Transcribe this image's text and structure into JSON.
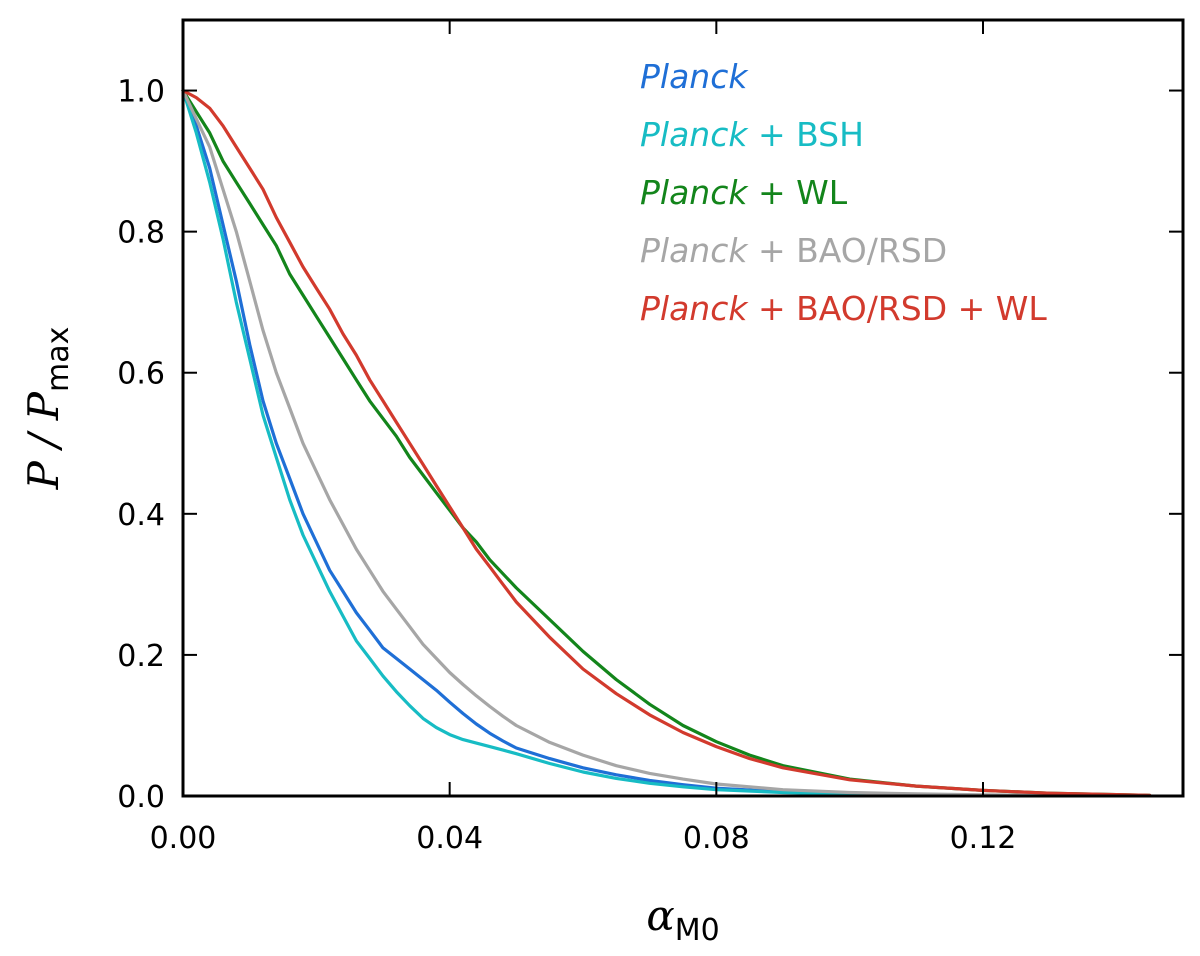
{
  "chart_data": {
    "type": "line",
    "title": "",
    "xlabel": {
      "main": "α",
      "sub": "M0"
    },
    "ylabel": {
      "main": "P / P",
      "sub": "max"
    },
    "xlim": [
      0.0,
      0.15
    ],
    "ylim": [
      0.0,
      1.1
    ],
    "xticks": [
      0.0,
      0.04,
      0.08,
      0.12
    ],
    "xtick_labels": [
      "0.00",
      "0.04",
      "0.08",
      "0.12"
    ],
    "yticks": [
      0.0,
      0.2,
      0.4,
      0.6,
      0.8,
      1.0
    ],
    "ytick_labels": [
      "0.0",
      "0.2",
      "0.4",
      "0.6",
      "0.8",
      "1.0"
    ],
    "grid": false,
    "legend_position": "top-right",
    "series": [
      {
        "name": "Planck",
        "legend_italic": "Planck",
        "legend_rest": "",
        "color": "#1f6fd6",
        "x": [
          0,
          0.002,
          0.004,
          0.006,
          0.008,
          0.01,
          0.012,
          0.014,
          0.016,
          0.018,
          0.02,
          0.022,
          0.024,
          0.026,
          0.028,
          0.03,
          0.032,
          0.034,
          0.036,
          0.038,
          0.04,
          0.042,
          0.044,
          0.046,
          0.048,
          0.05,
          0.055,
          0.06,
          0.065,
          0.07,
          0.075,
          0.08,
          0.09,
          0.1,
          0.11,
          0.12,
          0.13,
          0.14,
          0.145
        ],
        "y": [
          1.0,
          0.95,
          0.89,
          0.81,
          0.73,
          0.64,
          0.56,
          0.5,
          0.45,
          0.4,
          0.36,
          0.32,
          0.29,
          0.26,
          0.235,
          0.21,
          0.195,
          0.18,
          0.165,
          0.15,
          0.133,
          0.117,
          0.102,
          0.089,
          0.078,
          0.068,
          0.053,
          0.04,
          0.03,
          0.022,
          0.016,
          0.011,
          0.006,
          0.003,
          0.002,
          0.001,
          0.0005,
          0.0002,
          0.0001
        ]
      },
      {
        "name": "Planck + BSH",
        "legend_italic": "Planck",
        "legend_rest": " + BSH",
        "color": "#17bcc4",
        "x": [
          0,
          0.002,
          0.004,
          0.006,
          0.008,
          0.01,
          0.012,
          0.014,
          0.016,
          0.018,
          0.02,
          0.022,
          0.024,
          0.026,
          0.028,
          0.03,
          0.032,
          0.034,
          0.036,
          0.038,
          0.04,
          0.042,
          0.044,
          0.046,
          0.048,
          0.05,
          0.055,
          0.06,
          0.065,
          0.07,
          0.075,
          0.08,
          0.09,
          0.1,
          0.11,
          0.12,
          0.13,
          0.14,
          0.145
        ],
        "y": [
          1.0,
          0.94,
          0.87,
          0.79,
          0.7,
          0.62,
          0.54,
          0.48,
          0.42,
          0.37,
          0.33,
          0.29,
          0.255,
          0.22,
          0.195,
          0.17,
          0.148,
          0.128,
          0.11,
          0.097,
          0.087,
          0.08,
          0.075,
          0.07,
          0.065,
          0.06,
          0.046,
          0.034,
          0.025,
          0.018,
          0.013,
          0.009,
          0.005,
          0.003,
          0.0015,
          0.0008,
          0.0004,
          0.0002,
          0.0001
        ]
      },
      {
        "name": "Planck + WL",
        "legend_italic": "Planck",
        "legend_rest": " + WL",
        "color": "#13851b",
        "x": [
          0,
          0.002,
          0.004,
          0.006,
          0.008,
          0.01,
          0.012,
          0.014,
          0.016,
          0.018,
          0.02,
          0.022,
          0.024,
          0.026,
          0.028,
          0.03,
          0.032,
          0.034,
          0.036,
          0.038,
          0.04,
          0.042,
          0.044,
          0.046,
          0.048,
          0.05,
          0.055,
          0.06,
          0.065,
          0.07,
          0.075,
          0.08,
          0.085,
          0.09,
          0.1,
          0.11,
          0.12,
          0.13,
          0.14,
          0.145
        ],
        "y": [
          1.0,
          0.97,
          0.94,
          0.9,
          0.87,
          0.84,
          0.81,
          0.78,
          0.74,
          0.71,
          0.68,
          0.65,
          0.62,
          0.59,
          0.56,
          0.535,
          0.51,
          0.48,
          0.455,
          0.43,
          0.405,
          0.38,
          0.36,
          0.335,
          0.315,
          0.295,
          0.25,
          0.205,
          0.165,
          0.13,
          0.1,
          0.077,
          0.058,
          0.043,
          0.024,
          0.014,
          0.008,
          0.004,
          0.002,
          0.001
        ]
      },
      {
        "name": "Planck + BAO/RSD",
        "legend_italic": "Planck",
        "legend_rest": " + BAO/RSD",
        "color": "#a6a6a6",
        "x": [
          0,
          0.002,
          0.004,
          0.006,
          0.008,
          0.01,
          0.012,
          0.014,
          0.016,
          0.018,
          0.02,
          0.022,
          0.024,
          0.026,
          0.028,
          0.03,
          0.032,
          0.034,
          0.036,
          0.038,
          0.04,
          0.042,
          0.044,
          0.046,
          0.048,
          0.05,
          0.055,
          0.06,
          0.065,
          0.07,
          0.075,
          0.08,
          0.09,
          0.1,
          0.11,
          0.12,
          0.13,
          0.14,
          0.145
        ],
        "y": [
          1.0,
          0.96,
          0.92,
          0.86,
          0.8,
          0.73,
          0.66,
          0.6,
          0.55,
          0.5,
          0.46,
          0.42,
          0.385,
          0.35,
          0.32,
          0.29,
          0.265,
          0.24,
          0.215,
          0.195,
          0.175,
          0.158,
          0.142,
          0.127,
          0.113,
          0.1,
          0.076,
          0.058,
          0.043,
          0.032,
          0.024,
          0.017,
          0.009,
          0.005,
          0.003,
          0.0015,
          0.0008,
          0.0004,
          0.0002
        ]
      },
      {
        "name": "Planck + BAO/RSD + WL",
        "legend_italic": "Planck",
        "legend_rest": " + BAO/RSD + WL",
        "color": "#d23a2d",
        "x": [
          0,
          0.002,
          0.004,
          0.006,
          0.008,
          0.01,
          0.012,
          0.014,
          0.016,
          0.018,
          0.02,
          0.022,
          0.024,
          0.026,
          0.028,
          0.03,
          0.032,
          0.034,
          0.036,
          0.038,
          0.04,
          0.042,
          0.044,
          0.046,
          0.048,
          0.05,
          0.055,
          0.06,
          0.065,
          0.07,
          0.075,
          0.08,
          0.085,
          0.09,
          0.1,
          0.11,
          0.12,
          0.13,
          0.14,
          0.145
        ],
        "y": [
          1.0,
          0.99,
          0.975,
          0.95,
          0.92,
          0.89,
          0.86,
          0.82,
          0.785,
          0.75,
          0.72,
          0.69,
          0.655,
          0.625,
          0.59,
          0.56,
          0.53,
          0.5,
          0.47,
          0.44,
          0.41,
          0.38,
          0.35,
          0.325,
          0.3,
          0.275,
          0.225,
          0.18,
          0.145,
          0.115,
          0.09,
          0.07,
          0.053,
          0.04,
          0.023,
          0.014,
          0.008,
          0.004,
          0.002,
          0.001
        ]
      }
    ]
  }
}
